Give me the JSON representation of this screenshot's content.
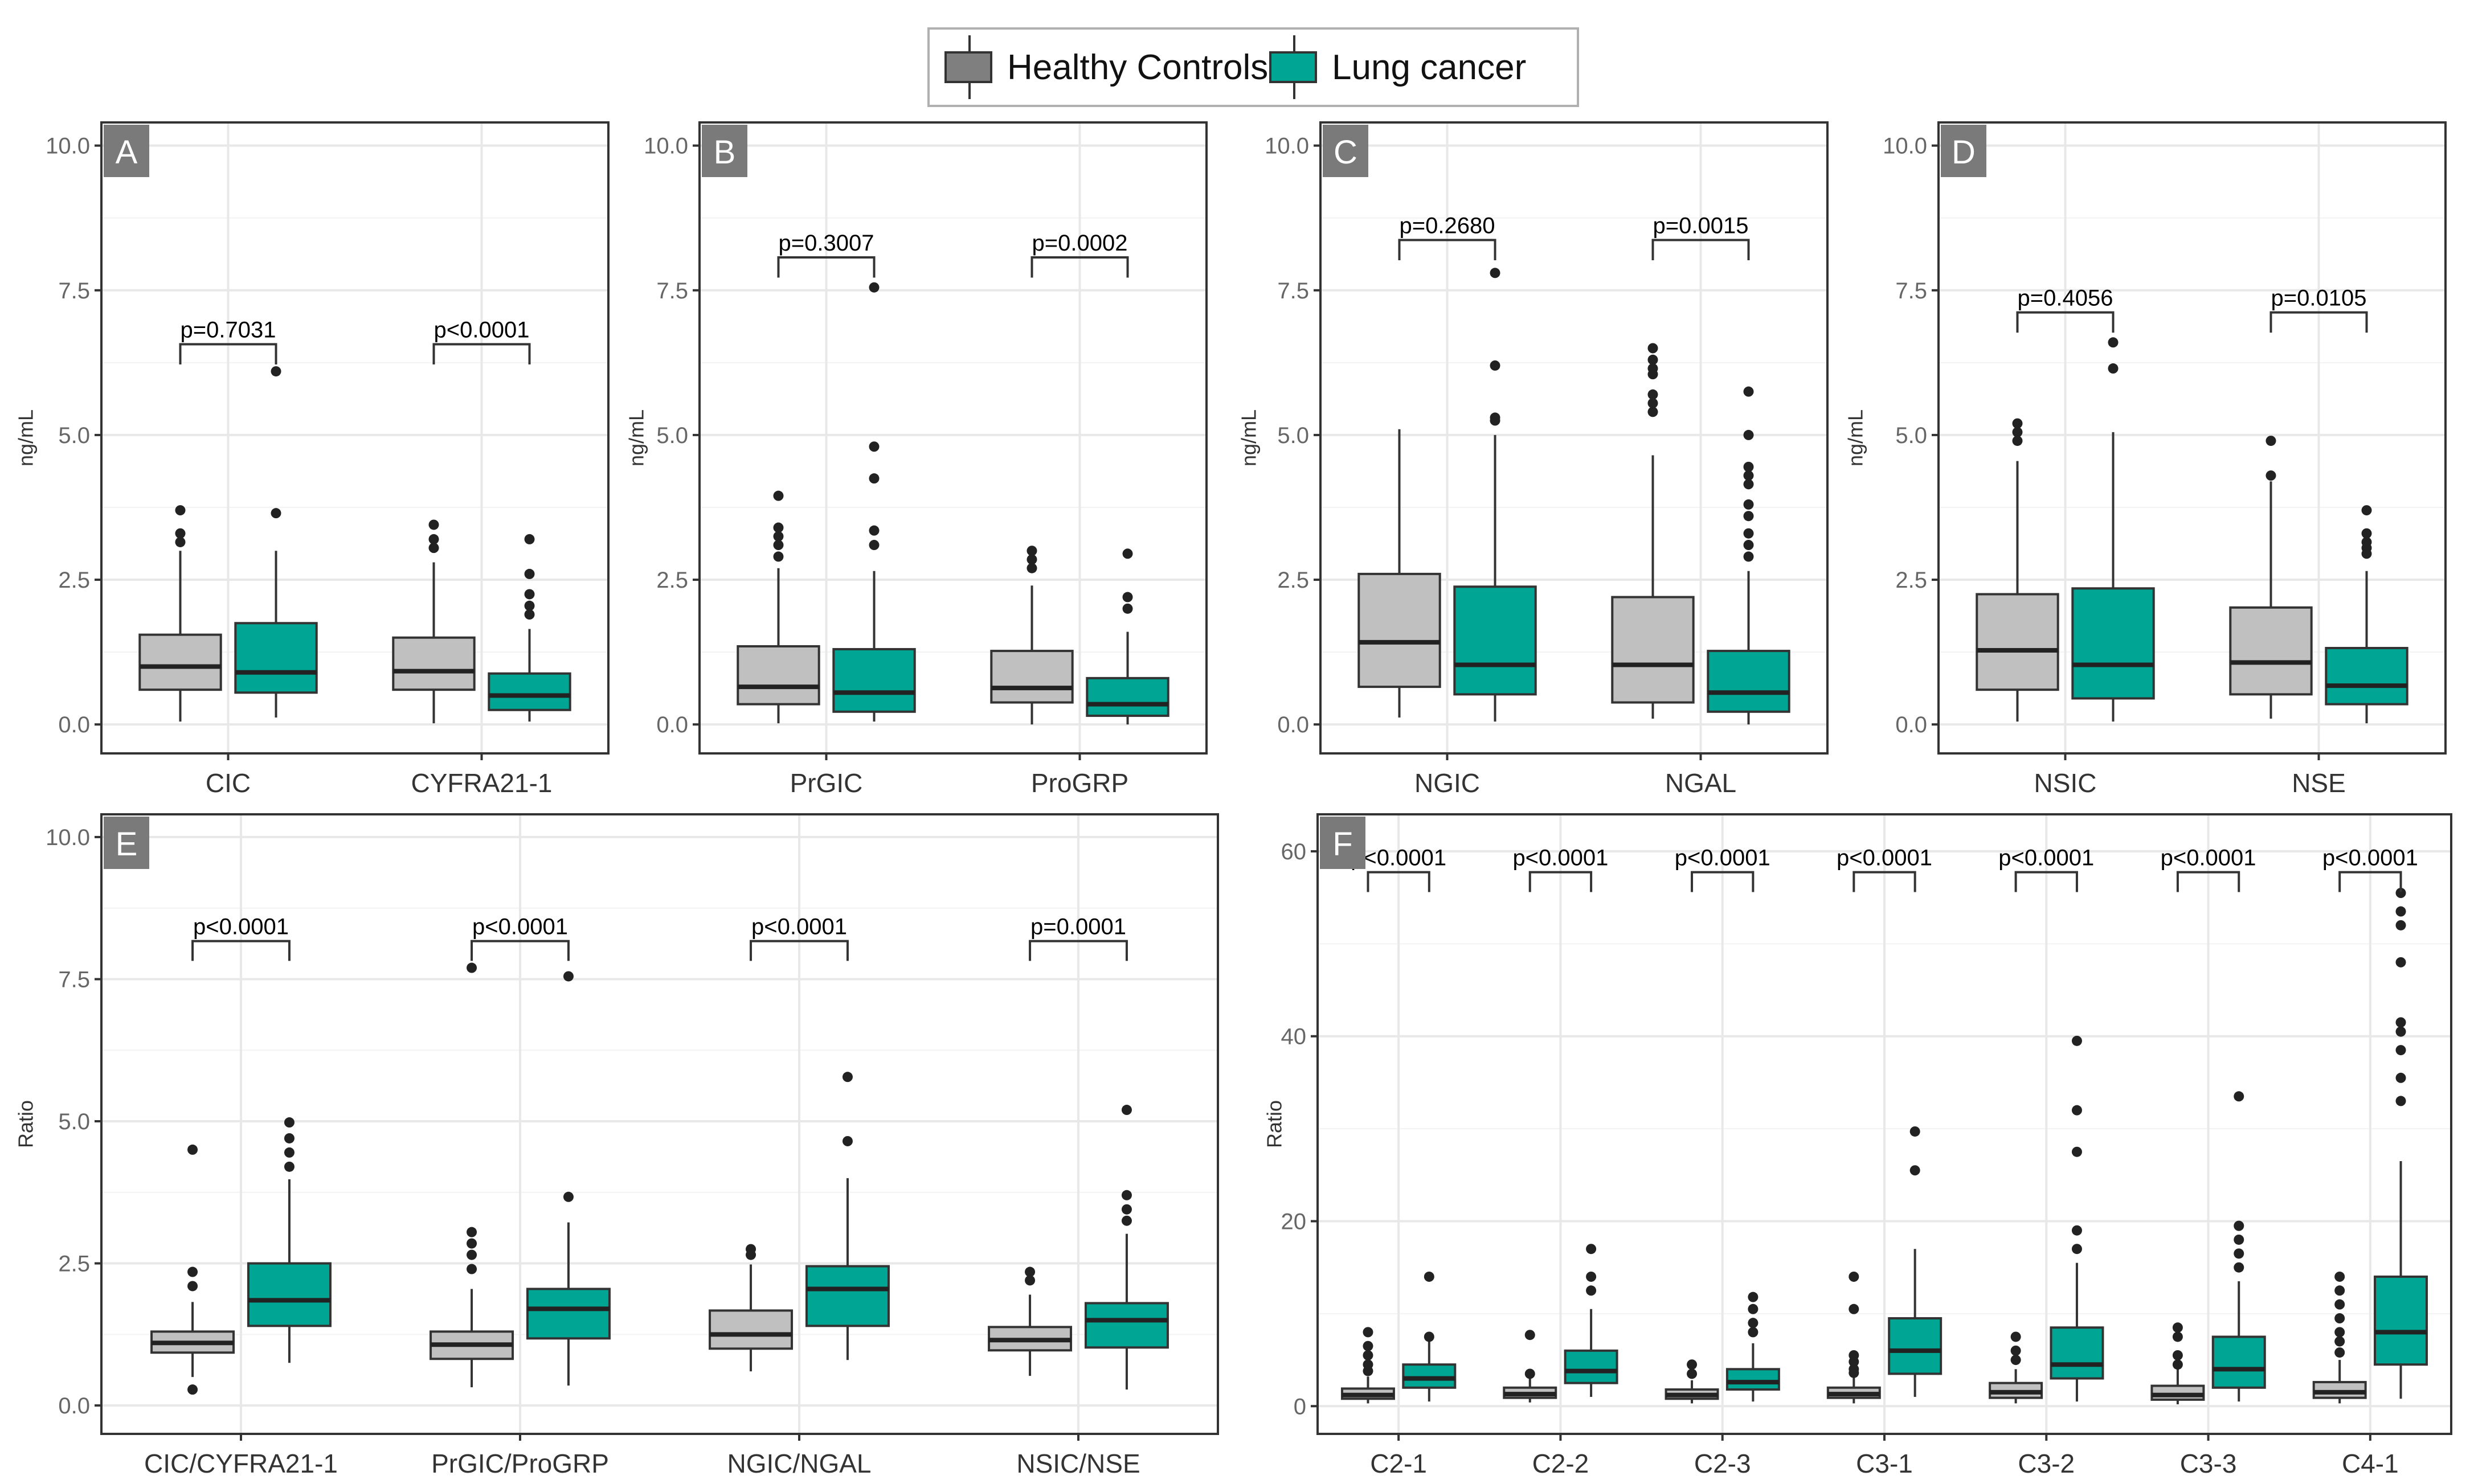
{
  "legend": {
    "items": [
      {
        "label": "Healthy Controls",
        "color": "#7f7f7f"
      },
      {
        "label": "Lung cancer",
        "color": "#00a693"
      }
    ]
  },
  "colors": {
    "control_box": "#c0c0c0",
    "cancer_box": "#00a693",
    "panel_label_bg": "#7a7a7a",
    "grid": "#e8e8e8"
  },
  "chart_data": [
    {
      "panel": "A",
      "type": "box",
      "ylabel": "ng/mL",
      "ylim": [
        -0.5,
        10.4
      ],
      "yticks": [
        0,
        2.5,
        5,
        7.5,
        10
      ],
      "ytick_labels": [
        "0.0",
        "2.5",
        "5.0",
        "7.5",
        "10.0"
      ],
      "categories": [
        "CIC",
        "CYFRA21-1"
      ],
      "pvalues": [
        "p=0.7031",
        "p<0.0001"
      ],
      "pvalue_y": [
        6.45,
        6.45
      ],
      "groups": [
        {
          "control": {
            "whisker_low": 0.05,
            "q1": 0.6,
            "median": 1.0,
            "q3": 1.55,
            "whisker_high": 3.0,
            "outliers": [
              3.15,
              3.3,
              3.7
            ]
          },
          "cancer": {
            "whisker_low": 0.12,
            "q1": 0.55,
            "median": 0.9,
            "q3": 1.75,
            "whisker_high": 3.0,
            "outliers": [
              3.65,
              6.1
            ]
          }
        },
        {
          "control": {
            "whisker_low": 0.02,
            "q1": 0.6,
            "median": 0.92,
            "q3": 1.5,
            "whisker_high": 2.8,
            "outliers": [
              3.05,
              3.2,
              3.45
            ]
          },
          "cancer": {
            "whisker_low": 0.05,
            "q1": 0.25,
            "median": 0.5,
            "q3": 0.88,
            "whisker_high": 1.65,
            "outliers": [
              1.9,
              2.05,
              2.25,
              2.6,
              3.2
            ]
          }
        }
      ]
    },
    {
      "panel": "B",
      "type": "box",
      "ylabel": "ng/mL",
      "ylim": [
        -0.5,
        10.4
      ],
      "yticks": [
        0,
        2.5,
        5,
        7.5,
        10
      ],
      "ytick_labels": [
        "0.0",
        "2.5",
        "5.0",
        "7.5",
        "10.0"
      ],
      "categories": [
        "PrGIC",
        "ProGRP"
      ],
      "pvalues": [
        "p=0.3007",
        "p=0.0002"
      ],
      "pvalue_y": [
        7.95,
        7.95
      ],
      "groups": [
        {
          "control": {
            "whisker_low": 0.02,
            "q1": 0.35,
            "median": 0.65,
            "q3": 1.35,
            "whisker_high": 2.7,
            "outliers": [
              2.9,
              3.1,
              3.25,
              3.4,
              3.95
            ]
          },
          "cancer": {
            "whisker_low": 0.05,
            "q1": 0.22,
            "median": 0.55,
            "q3": 1.3,
            "whisker_high": 2.65,
            "outliers": [
              3.1,
              3.35,
              4.25,
              4.8,
              7.55
            ]
          }
        },
        {
          "control": {
            "whisker_low": 0.0,
            "q1": 0.38,
            "median": 0.63,
            "q3": 1.27,
            "whisker_high": 2.4,
            "outliers": [
              2.7,
              2.85,
              3.0
            ]
          },
          "cancer": {
            "whisker_low": 0.0,
            "q1": 0.15,
            "median": 0.35,
            "q3": 0.8,
            "whisker_high": 1.6,
            "outliers": [
              2.0,
              2.2,
              2.95
            ]
          }
        }
      ]
    },
    {
      "panel": "C",
      "type": "box",
      "ylabel": "ng/mL",
      "ylim": [
        -0.5,
        10.4
      ],
      "yticks": [
        0,
        2.5,
        5,
        7.5,
        10
      ],
      "ytick_labels": [
        "0.0",
        "2.5",
        "5.0",
        "7.5",
        "10.0"
      ],
      "categories": [
        "NGIC",
        "NGAL"
      ],
      "pvalues": [
        "p=0.2680",
        "p=0.0015"
      ],
      "pvalue_y": [
        8.25,
        8.25
      ],
      "groups": [
        {
          "control": {
            "whisker_low": 0.12,
            "q1": 0.65,
            "median": 1.42,
            "q3": 2.6,
            "whisker_high": 5.1,
            "outliers": []
          },
          "cancer": {
            "whisker_low": 0.05,
            "q1": 0.52,
            "median": 1.03,
            "q3": 2.38,
            "whisker_high": 5.0,
            "outliers": [
              5.25,
              5.3,
              6.2,
              7.8
            ]
          }
        },
        {
          "control": {
            "whisker_low": 0.1,
            "q1": 0.38,
            "median": 1.03,
            "q3": 2.2,
            "whisker_high": 4.65,
            "outliers": [
              5.4,
              5.55,
              5.7,
              6.05,
              6.15,
              6.3,
              6.5
            ]
          },
          "cancer": {
            "whisker_low": 0.0,
            "q1": 0.22,
            "median": 0.55,
            "q3": 1.27,
            "whisker_high": 2.65,
            "outliers": [
              2.9,
              3.1,
              3.3,
              3.6,
              3.8,
              4.15,
              4.3,
              4.45,
              5.0,
              5.75
            ]
          }
        }
      ]
    },
    {
      "panel": "D",
      "type": "box",
      "ylabel": "ng/mL",
      "ylim": [
        -0.5,
        10.4
      ],
      "yticks": [
        0,
        2.5,
        5,
        7.5,
        10
      ],
      "ytick_labels": [
        "0.0",
        "2.5",
        "5.0",
        "7.5",
        "10.0"
      ],
      "categories": [
        "NSIC",
        "NSE"
      ],
      "pvalues": [
        "p=0.4056",
        "p=0.0105"
      ],
      "pvalue_y": [
        7.0,
        7.0
      ],
      "groups": [
        {
          "control": {
            "whisker_low": 0.05,
            "q1": 0.6,
            "median": 1.28,
            "q3": 2.25,
            "whisker_high": 4.55,
            "outliers": [
              4.9,
              5.05,
              5.2
            ]
          },
          "cancer": {
            "whisker_low": 0.05,
            "q1": 0.45,
            "median": 1.03,
            "q3": 2.35,
            "whisker_high": 5.05,
            "outliers": [
              6.15,
              6.6
            ]
          }
        },
        {
          "control": {
            "whisker_low": 0.1,
            "q1": 0.52,
            "median": 1.07,
            "q3": 2.02,
            "whisker_high": 4.2,
            "outliers": [
              4.3,
              4.9
            ]
          },
          "cancer": {
            "whisker_low": 0.02,
            "q1": 0.35,
            "median": 0.67,
            "q3": 1.32,
            "whisker_high": 2.65,
            "outliers": [
              2.95,
              3.05,
              3.15,
              3.3,
              3.7
            ]
          }
        }
      ]
    },
    {
      "panel": "E",
      "type": "box",
      "ylabel": "Ratio",
      "ylim": [
        -0.5,
        10.4
      ],
      "yticks": [
        0,
        2.5,
        5,
        7.5,
        10
      ],
      "ytick_labels": [
        "0.0",
        "2.5",
        "5.0",
        "7.5",
        "10.0"
      ],
      "categories": [
        "CIC/CYFRA21-1",
        "PrGIC/ProGRP",
        "NGIC/NGAL",
        "NSIC/NSE"
      ],
      "pvalues": [
        "p<0.0001",
        "p<0.0001",
        "p<0.0001",
        "p=0.0001"
      ],
      "pvalue_y": [
        8.05,
        8.05,
        8.05,
        8.05
      ],
      "groups": [
        {
          "control": {
            "whisker_low": 0.5,
            "q1": 0.93,
            "median": 1.1,
            "q3": 1.3,
            "whisker_high": 1.82,
            "outliers": [
              0.28,
              2.1,
              2.35,
              4.5
            ]
          },
          "cancer": {
            "whisker_low": 0.75,
            "q1": 1.4,
            "median": 1.85,
            "q3": 2.5,
            "whisker_high": 3.98,
            "outliers": [
              4.2,
              4.45,
              4.7,
              4.98
            ]
          }
        },
        {
          "control": {
            "whisker_low": 0.32,
            "q1": 0.82,
            "median": 1.07,
            "q3": 1.3,
            "whisker_high": 2.05,
            "outliers": [
              2.4,
              2.65,
              2.85,
              3.05,
              7.7
            ]
          },
          "cancer": {
            "whisker_low": 0.35,
            "q1": 1.18,
            "median": 1.7,
            "q3": 2.05,
            "whisker_high": 3.22,
            "outliers": [
              3.67,
              7.55
            ]
          }
        },
        {
          "control": {
            "whisker_low": 0.6,
            "q1": 1.0,
            "median": 1.25,
            "q3": 1.67,
            "whisker_high": 2.48,
            "outliers": [
              2.65,
              2.75
            ]
          },
          "cancer": {
            "whisker_low": 0.8,
            "q1": 1.4,
            "median": 2.05,
            "q3": 2.45,
            "whisker_high": 4.0,
            "outliers": [
              4.65,
              5.78
            ]
          }
        },
        {
          "control": {
            "whisker_low": 0.52,
            "q1": 0.97,
            "median": 1.15,
            "q3": 1.38,
            "whisker_high": 1.95,
            "outliers": [
              2.2,
              2.35
            ]
          },
          "cancer": {
            "whisker_low": 0.28,
            "q1": 1.02,
            "median": 1.5,
            "q3": 1.8,
            "whisker_high": 3.02,
            "outliers": [
              3.25,
              3.45,
              3.7,
              5.2
            ]
          }
        }
      ]
    },
    {
      "panel": "F",
      "type": "box",
      "ylabel": "Ratio",
      "ylim": [
        -3,
        64
      ],
      "yticks": [
        0,
        20,
        40,
        60
      ],
      "ytick_labels": [
        "0",
        "20",
        "40",
        "60"
      ],
      "categories": [
        "C2-1",
        "C2-2",
        "C2-3",
        "C3-1",
        "C3-2",
        "C3-3",
        "C4-1"
      ],
      "pvalues": [
        "p<0.0001",
        "p<0.0001",
        "p<0.0001",
        "p<0.0001",
        "p<0.0001",
        "p<0.0001",
        "p<0.0001"
      ],
      "pvalue_y": [
        57,
        57,
        57,
        57,
        57,
        57,
        57
      ],
      "groups": [
        {
          "control": {
            "whisker_low": 0.3,
            "q1": 0.8,
            "median": 1.2,
            "q3": 1.9,
            "whisker_high": 3.2,
            "outliers": [
              3.8,
              4.5,
              5.5,
              6.5,
              8.0
            ]
          },
          "cancer": {
            "whisker_low": 0.5,
            "q1": 2.0,
            "median": 3.0,
            "q3": 4.5,
            "whisker_high": 7.0,
            "outliers": [
              7.5,
              14.0
            ]
          }
        },
        {
          "control": {
            "whisker_low": 0.4,
            "q1": 0.9,
            "median": 1.3,
            "q3": 2.0,
            "whisker_high": 3.0,
            "outliers": [
              3.5,
              7.7
            ]
          },
          "cancer": {
            "whisker_low": 1.0,
            "q1": 2.5,
            "median": 3.8,
            "q3": 6.0,
            "whisker_high": 10.5,
            "outliers": [
              12.5,
              14.0,
              17.0
            ]
          }
        },
        {
          "control": {
            "whisker_low": 0.3,
            "q1": 0.8,
            "median": 1.2,
            "q3": 1.8,
            "whisker_high": 2.8,
            "outliers": [
              3.5,
              4.5
            ]
          },
          "cancer": {
            "whisker_low": 0.5,
            "q1": 1.8,
            "median": 2.6,
            "q3": 4.0,
            "whisker_high": 6.8,
            "outliers": [
              8.0,
              9.0,
              10.5,
              11.8
            ]
          }
        },
        {
          "control": {
            "whisker_low": 0.3,
            "q1": 0.9,
            "median": 1.3,
            "q3": 2.0,
            "whisker_high": 3.2,
            "outliers": [
              3.6,
              4.0,
              4.8,
              5.5,
              10.5,
              14.0
            ]
          },
          "cancer": {
            "whisker_low": 1.0,
            "q1": 3.5,
            "median": 6.0,
            "q3": 9.5,
            "whisker_high": 17.0,
            "outliers": [
              25.5,
              29.7
            ]
          }
        },
        {
          "control": {
            "whisker_low": 0.3,
            "q1": 0.9,
            "median": 1.5,
            "q3": 2.5,
            "whisker_high": 4.0,
            "outliers": [
              5.0,
              6.0,
              7.5
            ]
          },
          "cancer": {
            "whisker_low": 0.5,
            "q1": 3.0,
            "median": 4.5,
            "q3": 8.5,
            "whisker_high": 15.5,
            "outliers": [
              17.0,
              19.0,
              27.5,
              32.0,
              39.5
            ]
          }
        },
        {
          "control": {
            "whisker_low": 0.2,
            "q1": 0.7,
            "median": 1.2,
            "q3": 2.2,
            "whisker_high": 4.0,
            "outliers": [
              4.5,
              5.5,
              7.5,
              8.5
            ]
          },
          "cancer": {
            "whisker_low": 0.5,
            "q1": 2.0,
            "median": 4.0,
            "q3": 7.5,
            "whisker_high": 13.5,
            "outliers": [
              15.0,
              16.5,
              18.0,
              19.5,
              33.5
            ]
          }
        },
        {
          "control": {
            "whisker_low": 0.3,
            "q1": 0.9,
            "median": 1.5,
            "q3": 2.6,
            "whisker_high": 5.0,
            "outliers": [
              5.8,
              7.0,
              8.0,
              9.5,
              11.0,
              12.5,
              14.0
            ]
          },
          "cancer": {
            "whisker_low": 0.8,
            "q1": 4.5,
            "median": 8.0,
            "q3": 14.0,
            "whisker_high": 26.5,
            "outliers": [
              33.0,
              35.5,
              38.5,
              40.5,
              41.5,
              48.0,
              52.0,
              53.5,
              55.5
            ]
          }
        }
      ]
    }
  ]
}
